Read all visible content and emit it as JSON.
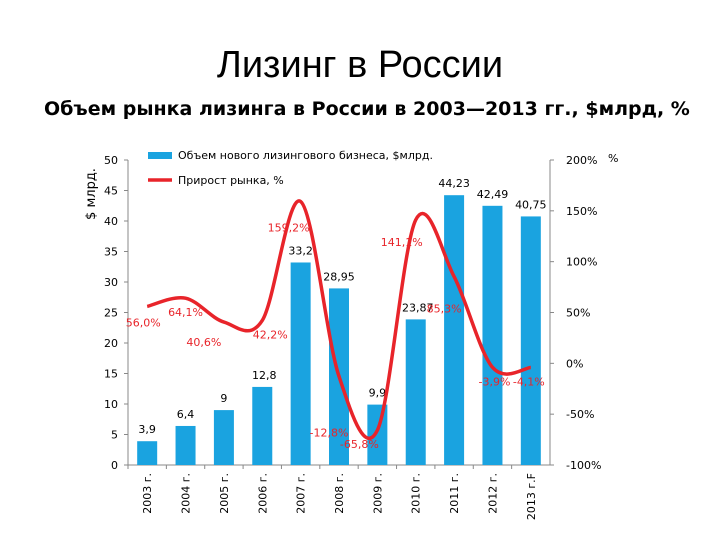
{
  "slide_title": "Лизинг в России",
  "chart_title": "Объем рынка лизинга в России в 2003—2013 гг., $млрд, %",
  "chart_data": {
    "type": "bar+line",
    "categories": [
      "2003 г.",
      "2004 г.",
      "2005 г.",
      "2006 г.",
      "2007 г.",
      "2008 г.",
      "2009 г.",
      "2010 г.",
      "2011 г.",
      "2012 г.",
      "2013 г.F"
    ],
    "series": [
      {
        "name": "Объем нового лизингового бизнеса, $млрд.",
        "type": "bar",
        "axis": "left",
        "color": "#1aa3e0",
        "values": [
          3.9,
          6.4,
          9,
          12.8,
          33.2,
          28.95,
          9.9,
          23.87,
          44.23,
          42.49,
          40.75
        ],
        "labels": [
          "3,9",
          "6,4",
          "9",
          "12,8",
          "33,2",
          "28,95",
          "9,9",
          "23,87",
          "44,23",
          "42,49",
          "40,75"
        ]
      },
      {
        "name": "Прирост рынка, %",
        "type": "line",
        "axis": "right",
        "color": "#e8242a",
        "values": [
          56.0,
          64.1,
          40.6,
          42.2,
          159.2,
          -12.8,
          -65.8,
          141.1,
          85.3,
          -3.9,
          -4.1
        ],
        "labels": [
          "56,0%",
          "64,1%",
          "40,6%",
          "42,2%",
          "159,2%",
          "-12,8%",
          "-65,8%",
          "141,1%",
          "85,3%",
          "-3,9%",
          "-4,1%"
        ]
      }
    ],
    "y_left": {
      "label": "$ млрд.",
      "range": [
        0,
        50
      ],
      "ticks": [
        "0",
        "5",
        "10",
        "15",
        "20",
        "25",
        "30",
        "35",
        "40",
        "45",
        "50"
      ]
    },
    "y_right": {
      "label": "%",
      "range": [
        -100,
        200
      ],
      "ticks": [
        "-100%",
        "-50%",
        "0%",
        "50%",
        "100%",
        "150%",
        "200%"
      ]
    },
    "legend_position": "top-left",
    "grid": false
  }
}
